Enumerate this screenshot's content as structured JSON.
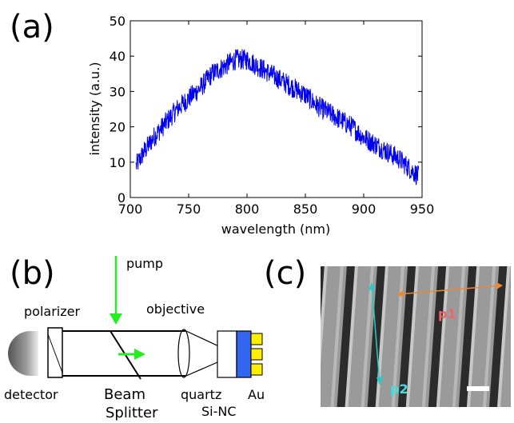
{
  "panels": {
    "a": "(a)",
    "b": "(b)",
    "c": "(c)"
  },
  "chart_data": {
    "type": "line",
    "title": "",
    "xlabel": "wavelength (nm)",
    "ylabel": "intensity (a.u.)",
    "xlim": [
      700,
      950
    ],
    "ylim": [
      0,
      50
    ],
    "xticks": [
      700,
      750,
      800,
      850,
      900,
      950
    ],
    "yticks": [
      0,
      10,
      20,
      30,
      40,
      50
    ],
    "grid": false,
    "series": [
      {
        "color": "#0000ee",
        "x": [
          705,
          712,
          720,
          730,
          740,
          750,
          760,
          770,
          780,
          790,
          800,
          810,
          820,
          830,
          840,
          850,
          860,
          870,
          880,
          890,
          900,
          910,
          920,
          930,
          940,
          947
        ],
        "y": [
          9,
          13,
          17,
          21,
          25,
          28,
          31,
          35,
          37,
          39,
          39,
          37,
          35,
          33,
          31,
          29,
          26,
          24,
          22,
          20,
          17,
          15,
          13,
          11,
          8,
          6
        ],
        "noise": 3
      }
    ]
  },
  "diagram": {
    "pump": "pump",
    "polarizer": "polarizer",
    "objective": "objective",
    "detector": "detector",
    "beam": "Beam",
    "splitter": "Splitter",
    "quartz": "quartz",
    "sinc": "Si-NC",
    "au": "Au"
  },
  "sem": {
    "p1": "p1",
    "p2": "p2"
  },
  "colors": {
    "line": "#0000ee",
    "pump_arrow": "#22ee22",
    "sinc": "#3366ee",
    "au": "#ffee00",
    "p1": "#ee8833",
    "p2": "#22cccc",
    "p1_text": "#ee6666",
    "p2_text": "#44dddd"
  }
}
